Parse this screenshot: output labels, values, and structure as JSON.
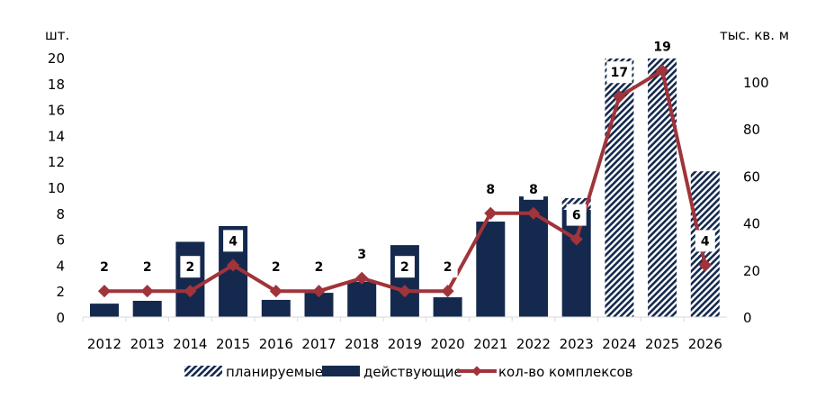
{
  "chart_data": {
    "type": "bar",
    "categories": [
      "2012",
      "2013",
      "2014",
      "2015",
      "2016",
      "2017",
      "2018",
      "2019",
      "2020",
      "2021",
      "2022",
      "2023",
      "2024",
      "2025",
      "2026"
    ],
    "left_axis": {
      "label": "шт.",
      "ylim": [
        0,
        22
      ],
      "ticks": [
        0,
        2,
        4,
        6,
        8,
        10,
        12,
        14,
        16,
        18,
        20
      ]
    },
    "right_axis": {
      "label": "тыс. кв. м",
      "ylim": [
        0,
        110
      ],
      "ticks": [
        0,
        20,
        40,
        60,
        80,
        100
      ]
    },
    "series": [
      {
        "name": "действующие",
        "type": "bar",
        "axis": "right",
        "color": "#14294d",
        "values": [
          5.7,
          6.9,
          32,
          38.7,
          7.3,
          10.3,
          15,
          30.6,
          8.4,
          40.6,
          51.3,
          45.6,
          0,
          0,
          0
        ]
      },
      {
        "name": "планируемые",
        "type": "bar",
        "axis": "right",
        "pattern": "hatched",
        "color": "#14294d",
        "values": [
          0,
          0,
          0,
          0,
          0,
          0,
          0,
          0,
          0,
          0,
          0,
          5,
          110,
          110,
          62
        ]
      },
      {
        "name": "кол-во комплексов",
        "type": "line",
        "axis": "left",
        "color": "#a0343a",
        "values": [
          2,
          2,
          2,
          4,
          2,
          2,
          3,
          2,
          2,
          8,
          8,
          6,
          17,
          19,
          4
        ]
      }
    ],
    "data_labels": [
      "2",
      "2",
      "2",
      "4",
      "2",
      "2",
      "3",
      "2",
      "2",
      "8",
      "8",
      "6",
      "17",
      "19",
      "4"
    ],
    "legend": {
      "position": "bottom",
      "entries": [
        "планируемые",
        "действующие",
        "кол-во комплексов"
      ]
    }
  }
}
